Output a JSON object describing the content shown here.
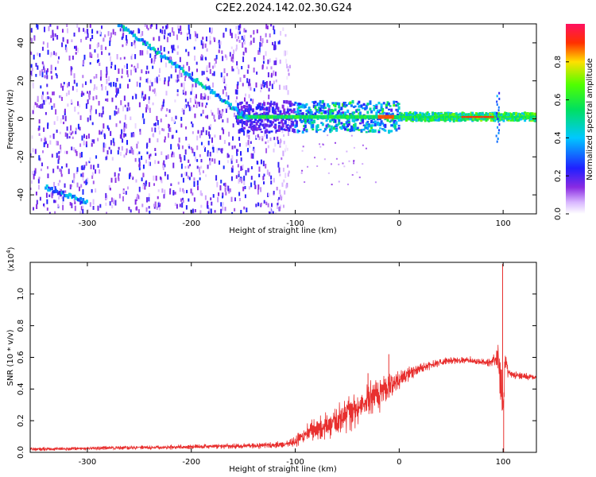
{
  "title": "C2E2.2024.142.02.30.G24",
  "colors": {
    "line": "#e8302f",
    "frame": "#000000"
  },
  "chart_data": [
    {
      "type": "heatmap",
      "xlabel": "Height of straight line (km)",
      "ylabel": "Frequency (Hz)",
      "xlim": [
        -355,
        132
      ],
      "ylim": [
        -50,
        50
      ],
      "xticks": [
        -300,
        -200,
        -100,
        0,
        100
      ],
      "yticks": [
        -40,
        -20,
        0,
        20,
        40
      ],
      "grid": false,
      "colorbar": {
        "label": "Normalized spectral amplitude",
        "range": [
          0,
          1
        ],
        "ticks": [
          "0.0",
          "0.2",
          "0.4",
          "0.6",
          "0.8"
        ],
        "colormap": "rainbow (white → violet → blue → cyan → green → yellow → red → magenta)"
      },
      "features": [
        {
          "name": "stable carrier",
          "x_range": [
            -100,
            132
          ],
          "frequency": 1,
          "peak_amplitude": 0.9
        },
        {
          "name": "descending drift line",
          "x_range": [
            -270,
            -145
          ],
          "frequency_range": [
            50,
            0
          ],
          "peak_amplitude": 0.5
        },
        {
          "name": "lower drift line",
          "x_range": [
            -340,
            -300
          ],
          "frequency_range": [
            -36,
            -44
          ],
          "peak_amplitude": 0.4
        },
        {
          "name": "diffuse noise",
          "x_range": [
            -355,
            -105
          ],
          "frequency_range": [
            -50,
            50
          ],
          "peak_amplitude": 0.3
        },
        {
          "name": "spike",
          "x": 95,
          "frequency_range": [
            -12,
            14
          ]
        }
      ]
    },
    {
      "type": "line",
      "xlabel": "Height of straight line (km)",
      "ylabel": "SNR (10 * v/v)",
      "scale_label": "(x10",
      "scale_exp": "4",
      "scale_close": ")",
      "xlim": [
        -355,
        132
      ],
      "ylim": [
        0,
        1.2
      ],
      "xticks": [
        -300,
        -200,
        -100,
        0,
        100
      ],
      "yticks": [
        "0.0",
        "0.2",
        "0.4",
        "0.6",
        "0.8",
        "1.0"
      ],
      "grid": false,
      "series": [
        {
          "color": "#e8302f",
          "x": [
            -355,
            -300,
            -250,
            -200,
            -150,
            -110,
            -100,
            -90,
            -80,
            -70,
            -60,
            -50,
            -40,
            -30,
            -20,
            -10,
            0,
            10,
            20,
            30,
            40,
            50,
            60,
            70,
            80,
            90,
            95,
            98,
            100,
            102,
            105,
            110,
            120,
            132
          ],
          "baseline": [
            0.02,
            0.025,
            0.03,
            0.035,
            0.04,
            0.05,
            0.07,
            0.12,
            0.14,
            0.17,
            0.2,
            0.24,
            0.28,
            0.33,
            0.37,
            0.42,
            0.46,
            0.5,
            0.53,
            0.55,
            0.57,
            0.58,
            0.58,
            0.58,
            0.57,
            0.57,
            0.6,
            0.45,
            0.25,
            0.6,
            0.5,
            0.49,
            0.48,
            0.47
          ],
          "spread": [
            0.02,
            0.02,
            0.025,
            0.025,
            0.03,
            0.04,
            0.06,
            0.1,
            0.14,
            0.16,
            0.18,
            0.2,
            0.22,
            0.22,
            0.2,
            0.16,
            0.12,
            0.08,
            0.06,
            0.05,
            0.05,
            0.04,
            0.04,
            0.04,
            0.04,
            0.05,
            0.18,
            0.3,
            0.3,
            0.18,
            0.06,
            0.05,
            0.04,
            0.04
          ],
          "peaks": [
            {
              "x": 99.5,
              "y": 1.19
            },
            {
              "x": 100.5,
              "y": 0.0
            },
            {
              "x": -10,
              "y": 0.62
            },
            {
              "x": -30,
              "y": 0.5
            }
          ]
        }
      ]
    }
  ]
}
